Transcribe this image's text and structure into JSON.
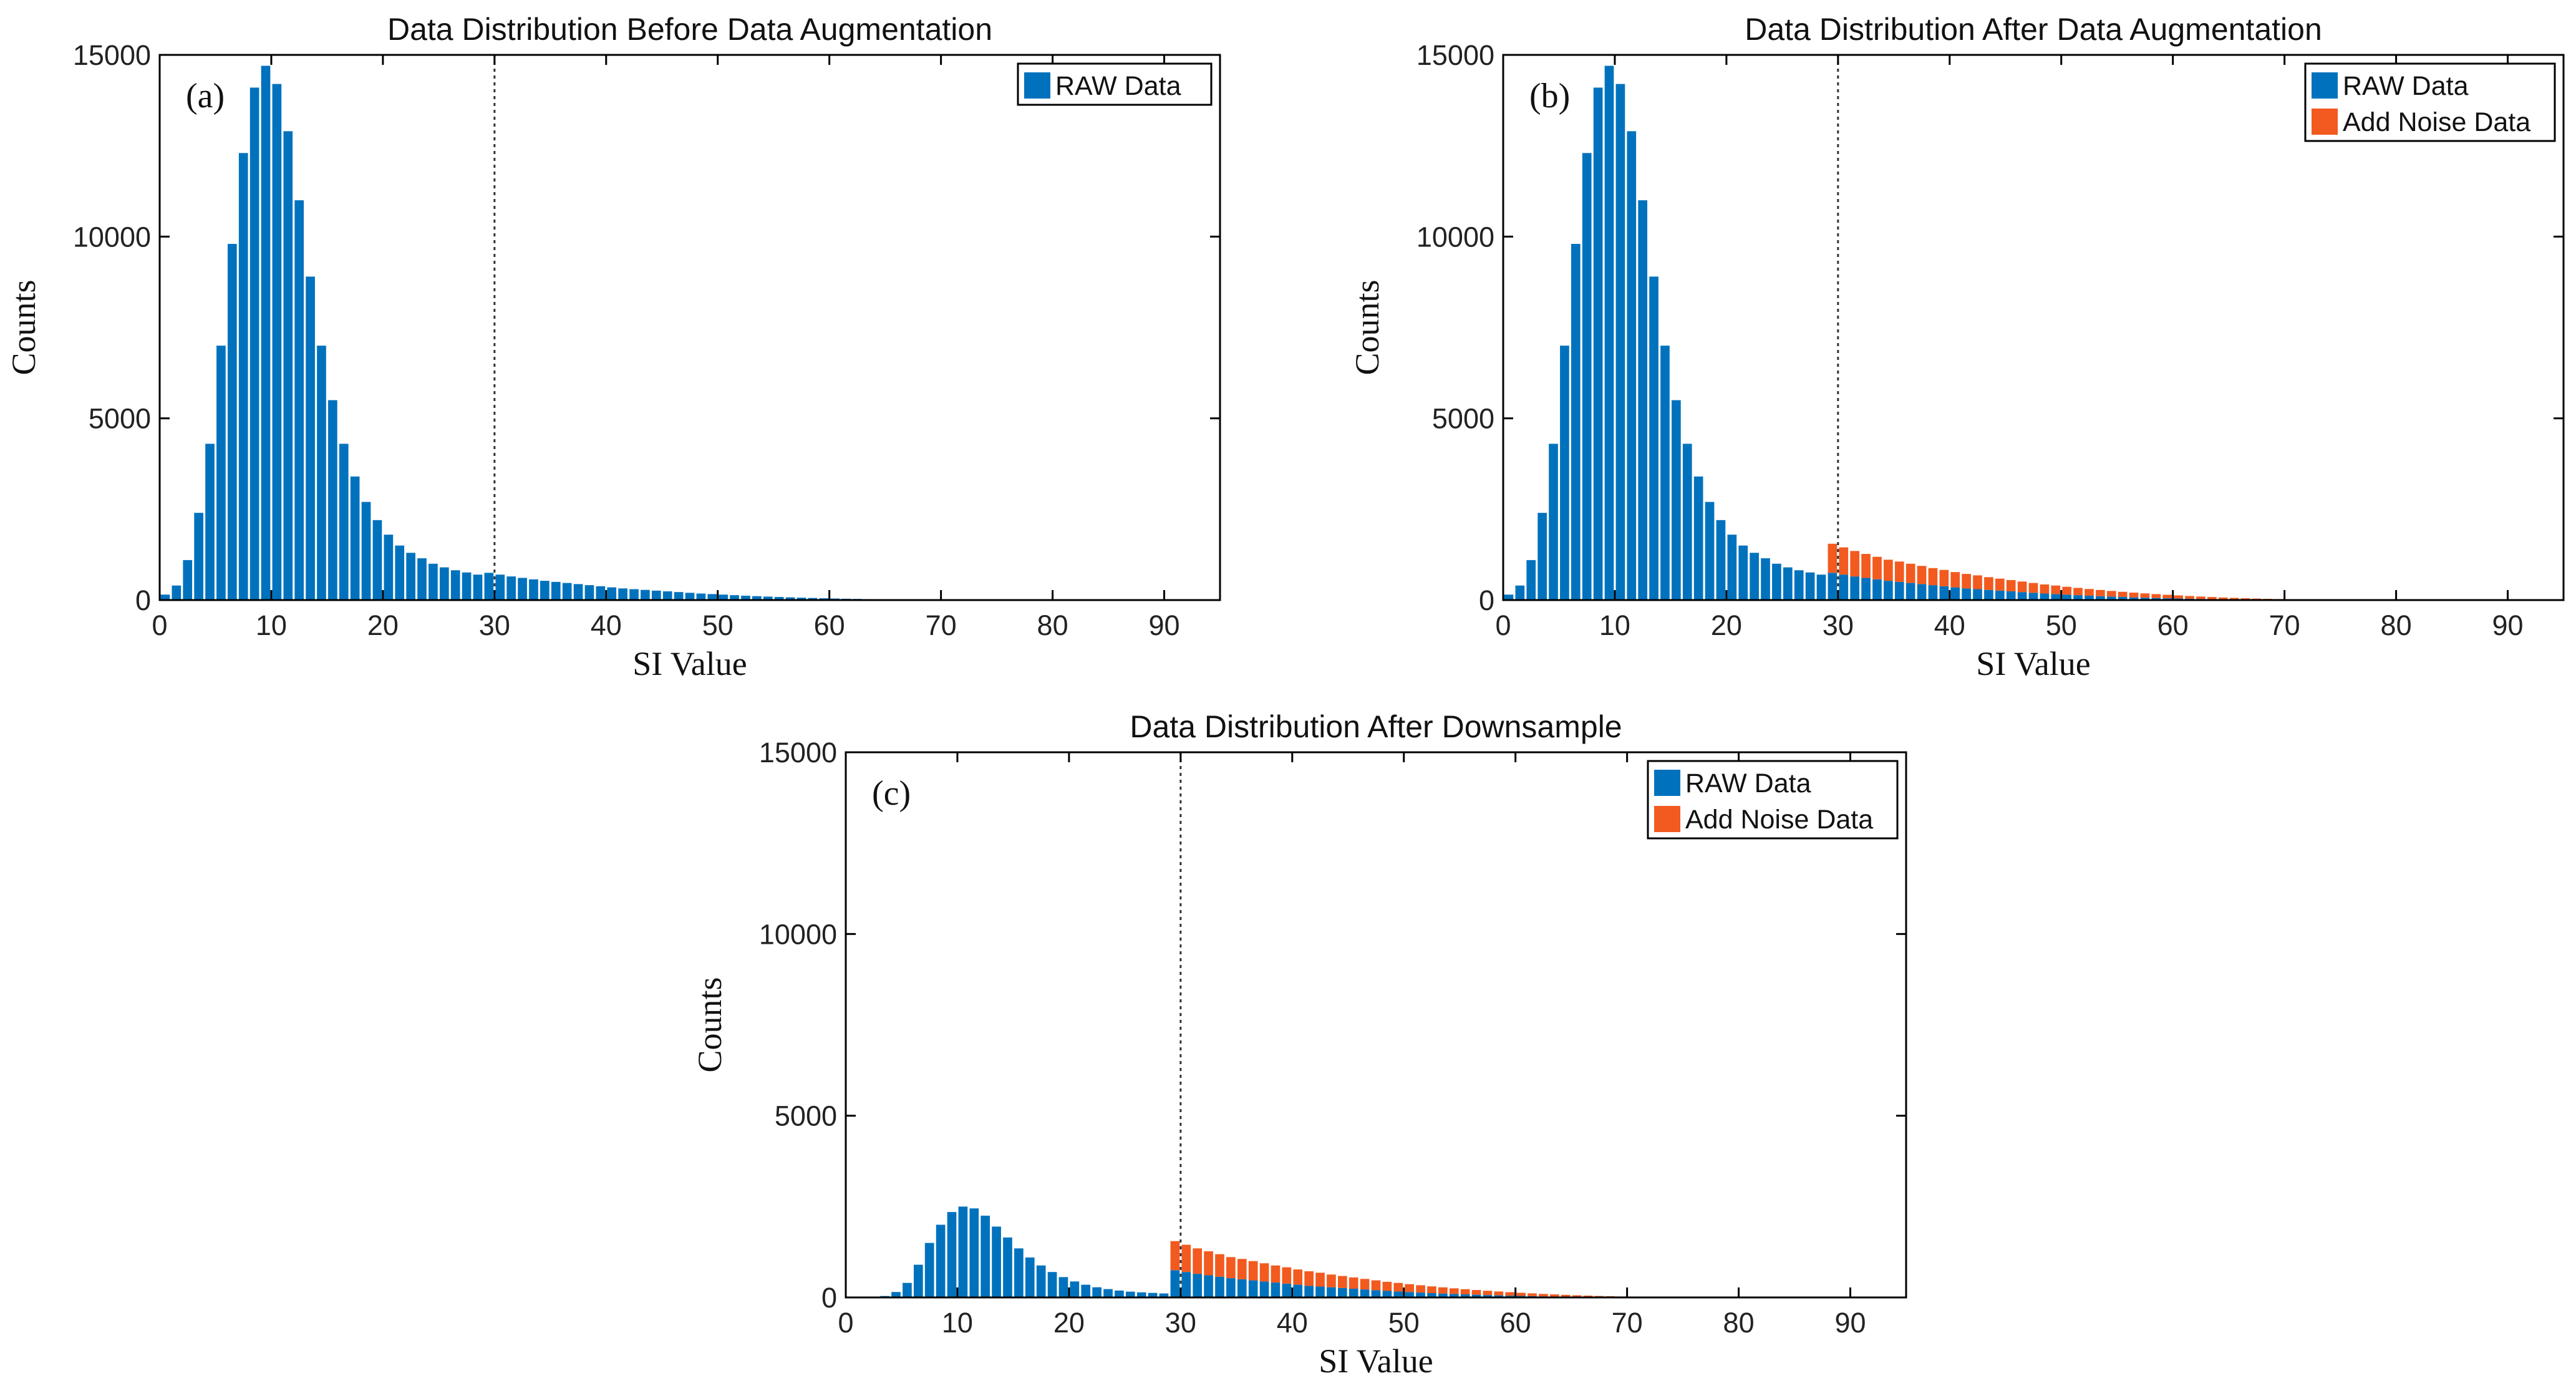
{
  "colors": {
    "raw": "#0072BD",
    "noise": "#F25A1F",
    "axis": "#000000",
    "threshold": "#333333"
  },
  "chart_data": [
    {
      "type": "bar",
      "panel_label": "(a)",
      "title": "Data Distribution Before Data Augmentation",
      "xlabel": "SI Value",
      "ylabel": "Counts",
      "xlim": [
        0,
        95
      ],
      "ylim": [
        0,
        15000
      ],
      "xticks": [
        0,
        10,
        20,
        30,
        40,
        50,
        60,
        70,
        80,
        90
      ],
      "yticks": [
        0,
        5000,
        10000,
        15000
      ],
      "threshold_x": 30,
      "bin_width": 1,
      "legend": [
        "RAW Data"
      ],
      "legend_position": "top-right",
      "x": [
        1,
        2,
        3,
        4,
        5,
        6,
        7,
        8,
        9,
        10,
        11,
        12,
        13,
        14,
        15,
        16,
        17,
        18,
        19,
        20,
        21,
        22,
        23,
        24,
        25,
        26,
        27,
        28,
        29,
        30,
        31,
        32,
        33,
        34,
        35,
        36,
        37,
        38,
        39,
        40,
        41,
        42,
        43,
        44,
        45,
        46,
        47,
        48,
        49,
        50,
        51,
        52,
        53,
        54,
        55,
        56,
        57,
        58,
        59,
        60,
        61,
        62,
        63,
        64,
        65,
        66,
        67,
        68,
        69,
        70
      ],
      "series": [
        {
          "name": "RAW Data",
          "values": [
            150,
            400,
            1100,
            2400,
            4300,
            7000,
            9800,
            12300,
            14100,
            14700,
            14200,
            12900,
            11000,
            8900,
            7000,
            5500,
            4300,
            3400,
            2700,
            2200,
            1800,
            1500,
            1300,
            1150,
            1000,
            900,
            820,
            760,
            700,
            750,
            700,
            650,
            610,
            570,
            530,
            500,
            470,
            440,
            410,
            380,
            350,
            320,
            300,
            280,
            260,
            240,
            220,
            200,
            180,
            165,
            150,
            135,
            120,
            108,
            96,
            85,
            75,
            66,
            58,
            50,
            43,
            37,
            31,
            26,
            21,
            17,
            13,
            10,
            8,
            6
          ]
        }
      ]
    },
    {
      "type": "bar",
      "panel_label": "(b)",
      "title": "Data Distribution After Data Augmentation",
      "xlabel": "SI Value",
      "ylabel": "Counts",
      "xlim": [
        0,
        95
      ],
      "ylim": [
        0,
        15000
      ],
      "xticks": [
        0,
        10,
        20,
        30,
        40,
        50,
        60,
        70,
        80,
        90
      ],
      "yticks": [
        0,
        5000,
        10000,
        15000
      ],
      "threshold_x": 30,
      "bin_width": 1,
      "legend": [
        "RAW Data",
        "Add Noise Data"
      ],
      "legend_position": "top-right",
      "x": [
        1,
        2,
        3,
        4,
        5,
        6,
        7,
        8,
        9,
        10,
        11,
        12,
        13,
        14,
        15,
        16,
        17,
        18,
        19,
        20,
        21,
        22,
        23,
        24,
        25,
        26,
        27,
        28,
        29,
        30,
        31,
        32,
        33,
        34,
        35,
        36,
        37,
        38,
        39,
        40,
        41,
        42,
        43,
        44,
        45,
        46,
        47,
        48,
        49,
        50,
        51,
        52,
        53,
        54,
        55,
        56,
        57,
        58,
        59,
        60,
        61,
        62,
        63,
        64,
        65,
        66,
        67,
        68,
        69,
        70,
        71,
        72,
        73,
        74,
        75,
        76,
        77,
        78
      ],
      "series": [
        {
          "name": "RAW Data",
          "values": [
            150,
            400,
            1100,
            2400,
            4300,
            7000,
            9800,
            12300,
            14100,
            14700,
            14200,
            12900,
            11000,
            8900,
            7000,
            5500,
            4300,
            3400,
            2700,
            2200,
            1800,
            1500,
            1300,
            1150,
            1000,
            900,
            820,
            760,
            700,
            750,
            700,
            650,
            610,
            570,
            530,
            500,
            470,
            440,
            410,
            380,
            350,
            320,
            300,
            280,
            260,
            240,
            220,
            200,
            180,
            165,
            150,
            135,
            120,
            108,
            96,
            85,
            75,
            66,
            58,
            50,
            43,
            37,
            31,
            26,
            21,
            17,
            13,
            10,
            8,
            6,
            0,
            0,
            0,
            0,
            0,
            0,
            0,
            0
          ]
        },
        {
          "name": "Add Noise Data",
          "values": [
            0,
            0,
            0,
            0,
            0,
            0,
            0,
            0,
            0,
            0,
            0,
            0,
            0,
            0,
            0,
            0,
            0,
            0,
            0,
            0,
            0,
            0,
            0,
            0,
            0,
            0,
            0,
            0,
            0,
            800,
            750,
            700,
            660,
            620,
            580,
            560,
            530,
            500,
            470,
            450,
            420,
            400,
            380,
            350,
            330,
            310,
            290,
            270,
            250,
            235,
            215,
            200,
            185,
            170,
            155,
            142,
            130,
            118,
            106,
            95,
            85,
            75,
            66,
            58,
            50,
            43,
            37,
            31,
            26,
            22,
            20,
            18,
            16,
            14,
            12,
            10,
            9,
            8
          ]
        }
      ]
    },
    {
      "type": "bar",
      "panel_label": "(c)",
      "title": "Data Distribution After Downsample",
      "xlabel": "SI Value",
      "ylabel": "Counts",
      "xlim": [
        0,
        95
      ],
      "ylim": [
        0,
        15000
      ],
      "xticks": [
        0,
        10,
        20,
        30,
        40,
        50,
        60,
        70,
        80,
        90
      ],
      "yticks": [
        0,
        5000,
        10000,
        15000
      ],
      "threshold_x": 30,
      "bin_width": 1,
      "legend": [
        "RAW Data",
        "Add Noise Data"
      ],
      "legend_position": "top-right",
      "x": [
        1,
        2,
        3,
        4,
        5,
        6,
        7,
        8,
        9,
        10,
        11,
        12,
        13,
        14,
        15,
        16,
        17,
        18,
        19,
        20,
        21,
        22,
        23,
        24,
        25,
        26,
        27,
        28,
        29,
        30,
        31,
        32,
        33,
        34,
        35,
        36,
        37,
        38,
        39,
        40,
        41,
        42,
        43,
        44,
        45,
        46,
        47,
        48,
        49,
        50,
        51,
        52,
        53,
        54,
        55,
        56,
        57,
        58,
        59,
        60,
        61,
        62,
        63,
        64,
        65,
        66,
        67,
        68,
        69,
        70,
        71,
        72,
        73,
        74,
        75,
        76,
        77,
        78
      ],
      "series": [
        {
          "name": "RAW Data",
          "values": [
            0,
            0,
            10,
            40,
            150,
            400,
            900,
            1500,
            2000,
            2350,
            2500,
            2450,
            2250,
            1950,
            1650,
            1350,
            1100,
            880,
            700,
            560,
            440,
            350,
            280,
            230,
            190,
            160,
            140,
            125,
            110,
            750,
            700,
            650,
            610,
            570,
            530,
            500,
            470,
            440,
            410,
            380,
            350,
            320,
            300,
            280,
            260,
            240,
            220,
            200,
            180,
            165,
            150,
            135,
            120,
            108,
            96,
            85,
            75,
            66,
            58,
            50,
            43,
            37,
            31,
            26,
            21,
            17,
            13,
            10,
            8,
            6,
            0,
            0,
            0,
            0,
            0,
            0,
            0,
            0
          ]
        },
        {
          "name": "Add Noise Data",
          "values": [
            0,
            0,
            0,
            0,
            0,
            0,
            0,
            0,
            0,
            0,
            0,
            0,
            0,
            0,
            0,
            0,
            0,
            0,
            0,
            0,
            0,
            0,
            0,
            0,
            0,
            0,
            0,
            0,
            0,
            800,
            750,
            700,
            660,
            620,
            580,
            560,
            530,
            500,
            470,
            450,
            420,
            400,
            380,
            350,
            330,
            310,
            290,
            270,
            250,
            235,
            215,
            200,
            185,
            170,
            155,
            142,
            130,
            118,
            106,
            95,
            85,
            75,
            66,
            58,
            50,
            43,
            37,
            31,
            26,
            22,
            20,
            18,
            16,
            14,
            12,
            10,
            9,
            8
          ]
        }
      ]
    }
  ]
}
